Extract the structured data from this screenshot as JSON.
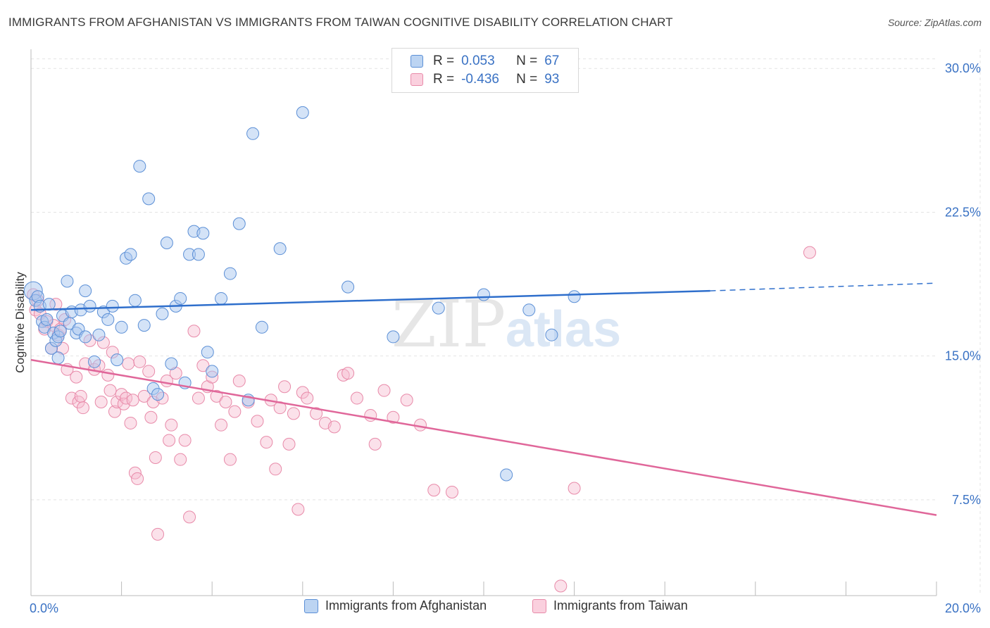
{
  "title": "IMMIGRANTS FROM AFGHANISTAN VS IMMIGRANTS FROM TAIWAN COGNITIVE DISABILITY CORRELATION CHART",
  "source": "Source: ZipAtlas.com",
  "watermark": {
    "zip": "ZIP",
    "atlas": "atlas"
  },
  "legend": {
    "rows": [
      {
        "r_label": "R =",
        "r_value": "0.053",
        "n_label": "N =",
        "n_value": "67"
      },
      {
        "r_label": "R =",
        "r_value": "-0.436",
        "n_label": "N =",
        "n_value": "93"
      }
    ]
  },
  "colors": {
    "afghanistan_fill": "#a9c8ef",
    "afghanistan_stroke": "#5b8fd6",
    "afghanistan_line": "#2f6fcc",
    "taiwan_fill": "#f7bcd0",
    "taiwan_stroke": "#e88aa9",
    "taiwan_line": "#e0679a",
    "axis_label": "#3a72c4"
  },
  "chart_data": {
    "type": "scatter",
    "title": "IMMIGRANTS FROM AFGHANISTAN VS IMMIGRANTS FROM TAIWAN COGNITIVE DISABILITY CORRELATION CHART",
    "xlabel": "",
    "ylabel": "Cognitive Disability",
    "xlim": [
      0,
      20
    ],
    "ylim": [
      2.5,
      31
    ],
    "x_tick_labels": [
      "0.0%",
      "20.0%"
    ],
    "y_ticks": [
      7.5,
      15.0,
      22.5,
      30.0
    ],
    "y_tick_labels": [
      "7.5%",
      "15.0%",
      "22.5%",
      "30.0%"
    ],
    "grid": true,
    "legend_position": "top-center",
    "series": [
      {
        "name": "Immigrants from Afghanistan",
        "r": 0.053,
        "n": 67,
        "trend": {
          "x": [
            0,
            15
          ],
          "y": [
            17.4,
            18.4
          ],
          "dashed_to": [
            20,
            18.8
          ]
        },
        "points": [
          [
            0.05,
            18.4
          ],
          [
            0.1,
            17.9
          ],
          [
            0.15,
            18.1
          ],
          [
            0.2,
            17.6
          ],
          [
            0.25,
            16.8
          ],
          [
            0.3,
            16.5
          ],
          [
            0.35,
            16.9
          ],
          [
            0.4,
            17.7
          ],
          [
            0.45,
            15.4
          ],
          [
            0.5,
            16.2
          ],
          [
            0.55,
            15.8
          ],
          [
            0.6,
            16.0
          ],
          [
            0.65,
            16.3
          ],
          [
            0.7,
            17.1
          ],
          [
            0.8,
            18.9
          ],
          [
            0.85,
            16.7
          ],
          [
            0.9,
            17.3
          ],
          [
            1.0,
            16.2
          ],
          [
            1.05,
            16.4
          ],
          [
            1.1,
            17.4
          ],
          [
            1.2,
            16.0
          ],
          [
            1.3,
            17.6
          ],
          [
            1.4,
            14.7
          ],
          [
            1.5,
            16.1
          ],
          [
            1.6,
            17.3
          ],
          [
            1.7,
            16.9
          ],
          [
            1.8,
            17.6
          ],
          [
            1.9,
            14.8
          ],
          [
            2.0,
            16.5
          ],
          [
            2.1,
            20.1
          ],
          [
            2.2,
            20.3
          ],
          [
            2.3,
            17.9
          ],
          [
            2.4,
            24.9
          ],
          [
            2.5,
            16.6
          ],
          [
            2.6,
            23.2
          ],
          [
            2.7,
            13.3
          ],
          [
            2.8,
            13.0
          ],
          [
            2.9,
            17.2
          ],
          [
            3.0,
            20.9
          ],
          [
            3.1,
            14.6
          ],
          [
            3.2,
            17.6
          ],
          [
            3.3,
            18.0
          ],
          [
            3.4,
            13.6
          ],
          [
            3.5,
            20.3
          ],
          [
            3.6,
            21.5
          ],
          [
            3.7,
            20.3
          ],
          [
            3.8,
            21.4
          ],
          [
            3.9,
            15.2
          ],
          [
            4.0,
            14.2
          ],
          [
            4.2,
            18.0
          ],
          [
            4.4,
            19.3
          ],
          [
            4.6,
            21.9
          ],
          [
            4.8,
            12.7
          ],
          [
            4.9,
            26.6
          ],
          [
            5.1,
            16.5
          ],
          [
            5.5,
            20.6
          ],
          [
            6.0,
            27.7
          ],
          [
            7.0,
            18.6
          ],
          [
            8.0,
            16.0
          ],
          [
            9.0,
            17.5
          ],
          [
            10.0,
            18.2
          ],
          [
            10.5,
            8.8
          ],
          [
            11.0,
            17.4
          ],
          [
            11.5,
            16.1
          ],
          [
            12.0,
            18.1
          ],
          [
            0.6,
            14.9
          ],
          [
            1.2,
            18.4
          ]
        ]
      },
      {
        "name": "Immigrants from Taiwan",
        "r": -0.436,
        "n": 93,
        "trend": {
          "x": [
            0,
            20
          ],
          "y": [
            14.8,
            6.7
          ]
        },
        "points": [
          [
            0.05,
            18.2
          ],
          [
            0.1,
            17.4
          ],
          [
            0.15,
            17.9
          ],
          [
            0.2,
            17.2
          ],
          [
            0.3,
            16.4
          ],
          [
            0.35,
            16.8
          ],
          [
            0.45,
            15.4
          ],
          [
            0.5,
            16.6
          ],
          [
            0.55,
            17.7
          ],
          [
            0.6,
            16.1
          ],
          [
            0.65,
            16.4
          ],
          [
            0.7,
            15.4
          ],
          [
            0.75,
            16.9
          ],
          [
            0.8,
            14.3
          ],
          [
            0.9,
            12.8
          ],
          [
            1.0,
            13.9
          ],
          [
            1.05,
            12.6
          ],
          [
            1.1,
            12.9
          ],
          [
            1.15,
            12.3
          ],
          [
            1.2,
            14.6
          ],
          [
            1.3,
            15.8
          ],
          [
            1.4,
            14.3
          ],
          [
            1.5,
            14.5
          ],
          [
            1.55,
            12.6
          ],
          [
            1.6,
            15.7
          ],
          [
            1.7,
            14.0
          ],
          [
            1.75,
            13.2
          ],
          [
            1.8,
            15.2
          ],
          [
            1.85,
            12.1
          ],
          [
            1.9,
            12.6
          ],
          [
            2.0,
            13.0
          ],
          [
            2.05,
            12.5
          ],
          [
            2.1,
            12.8
          ],
          [
            2.15,
            14.6
          ],
          [
            2.2,
            11.5
          ],
          [
            2.25,
            12.7
          ],
          [
            2.3,
            8.9
          ],
          [
            2.35,
            8.6
          ],
          [
            2.4,
            14.7
          ],
          [
            2.5,
            12.9
          ],
          [
            2.6,
            14.2
          ],
          [
            2.65,
            11.8
          ],
          [
            2.7,
            12.6
          ],
          [
            2.75,
            9.7
          ],
          [
            2.8,
            5.7
          ],
          [
            2.9,
            12.8
          ],
          [
            3.0,
            13.7
          ],
          [
            3.05,
            10.6
          ],
          [
            3.1,
            11.4
          ],
          [
            3.2,
            14.1
          ],
          [
            3.3,
            9.6
          ],
          [
            3.4,
            10.6
          ],
          [
            3.5,
            6.6
          ],
          [
            3.6,
            16.3
          ],
          [
            3.7,
            12.8
          ],
          [
            3.8,
            14.5
          ],
          [
            3.9,
            13.4
          ],
          [
            4.0,
            13.9
          ],
          [
            4.1,
            12.9
          ],
          [
            4.2,
            11.4
          ],
          [
            4.3,
            12.6
          ],
          [
            4.4,
            9.6
          ],
          [
            4.5,
            12.1
          ],
          [
            4.6,
            13.7
          ],
          [
            4.8,
            12.6
          ],
          [
            5.0,
            11.6
          ],
          [
            5.2,
            10.5
          ],
          [
            5.3,
            12.7
          ],
          [
            5.4,
            9.1
          ],
          [
            5.5,
            12.3
          ],
          [
            5.6,
            13.4
          ],
          [
            5.7,
            10.4
          ],
          [
            5.8,
            12.0
          ],
          [
            5.9,
            7.0
          ],
          [
            6.0,
            13.1
          ],
          [
            6.1,
            12.8
          ],
          [
            6.3,
            12.0
          ],
          [
            6.5,
            11.5
          ],
          [
            6.7,
            11.3
          ],
          [
            6.9,
            14.0
          ],
          [
            7.0,
            14.1
          ],
          [
            7.2,
            12.8
          ],
          [
            7.5,
            11.9
          ],
          [
            7.8,
            13.2
          ],
          [
            8.0,
            11.8
          ],
          [
            8.3,
            12.7
          ],
          [
            8.6,
            11.4
          ],
          [
            8.9,
            8.0
          ],
          [
            9.3,
            7.9
          ],
          [
            11.7,
            3.0
          ],
          [
            12.0,
            8.1
          ],
          [
            17.2,
            20.4
          ],
          [
            7.6,
            10.4
          ]
        ]
      }
    ]
  },
  "bottom_legend": [
    "Immigrants from Afghanistan",
    "Immigrants from Taiwan"
  ]
}
